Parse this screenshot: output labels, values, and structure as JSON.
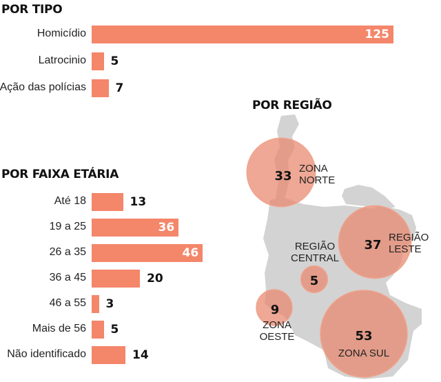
{
  "colors": {
    "bar": "#f4866a",
    "bubble": "#e8876c",
    "map": "#d3d3d3"
  },
  "chart_data": [
    {
      "type": "bar",
      "title": "POR TIPO",
      "categories": [
        "Homicídio",
        "Latrocinio",
        "Ação das polícias"
      ],
      "values": [
        125,
        5,
        7
      ]
    },
    {
      "type": "bar",
      "title": "POR FAIXA ETÁRIA",
      "categories": [
        "Até 18",
        "19 a 25",
        "26 a 35",
        "36 a 45",
        "46 a 55",
        "Mais de 56",
        "Não identificado"
      ],
      "values": [
        13,
        36,
        46,
        20,
        3,
        5,
        14
      ]
    },
    {
      "type": "bubble-map",
      "title": "POR REGIÃO",
      "regions": [
        {
          "name_lines": [
            "ZONA",
            "NORTE"
          ],
          "value": 33
        },
        {
          "name_lines": [
            "REGIÃO",
            "LESTE"
          ],
          "value": 37
        },
        {
          "name_lines": [
            "REGIÃO",
            "CENTRAL"
          ],
          "value": 5
        },
        {
          "name_lines": [
            "ZONA",
            "OESTE"
          ],
          "value": 9
        },
        {
          "name_lines": [
            "ZONA SUL"
          ],
          "value": 53
        }
      ]
    }
  ]
}
